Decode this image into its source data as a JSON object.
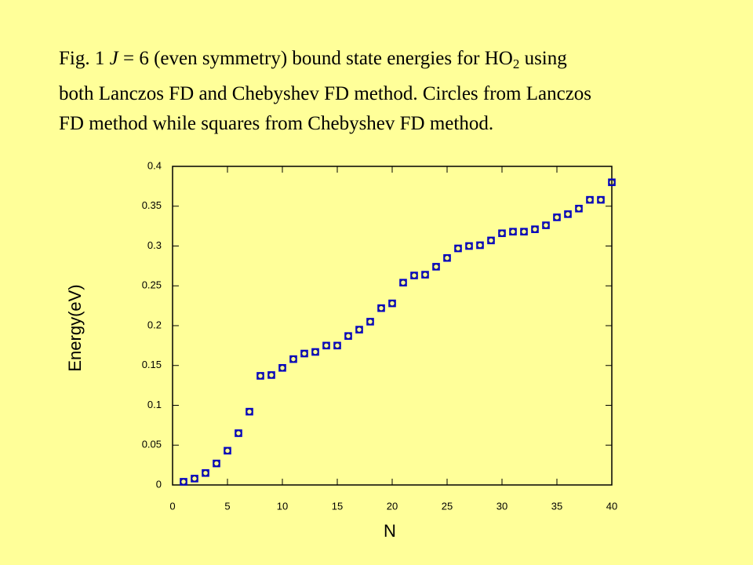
{
  "chart_data": {
    "type": "scatter",
    "title_lines": [
      [
        "Fig. 1 ",
        "J",
        " = 6 (even symmetry) bound state energies for HO",
        "2",
        " using"
      ],
      [
        "both Lanczos FD and Chebyshev FD method. Circles from Lanczos"
      ],
      [
        "FD method while squares from Chebyshev FD method."
      ]
    ],
    "x_label": "N",
    "y_label": "Energy(eV)",
    "xlim": [
      0,
      40
    ],
    "ylim": [
      0,
      0.4
    ],
    "xticks": [
      0,
      5,
      10,
      15,
      20,
      25,
      30,
      35,
      40
    ],
    "yticks": [
      0,
      0.05,
      0.1,
      0.15,
      0.2,
      0.25,
      0.3,
      0.35,
      0.4
    ],
    "x": [
      1,
      2,
      3,
      4,
      5,
      6,
      7,
      8,
      9,
      10,
      11,
      12,
      13,
      14,
      15,
      16,
      17,
      18,
      19,
      20,
      21,
      22,
      23,
      24,
      25,
      26,
      27,
      28,
      29,
      30,
      31,
      32,
      33,
      34,
      35,
      36,
      37,
      38,
      39,
      40
    ],
    "series": [
      {
        "marker": "circle",
        "color": "#1c1c7a",
        "values": [
          0.004,
          0.008,
          0.015,
          0.027,
          0.043,
          0.065,
          0.092,
          0.137,
          0.138,
          0.147,
          0.158,
          0.165,
          0.167,
          0.175,
          0.175,
          0.187,
          0.195,
          0.205,
          0.222,
          0.228,
          0.254,
          0.263,
          0.264,
          0.274,
          0.285,
          0.297,
          0.3,
          0.301,
          0.307,
          0.316,
          0.318,
          0.318,
          0.321,
          0.326,
          0.336,
          0.34,
          0.347,
          0.358,
          0.358,
          0.38
        ]
      },
      {
        "marker": "square",
        "color": "#0000cc",
        "values": [
          0.004,
          0.008,
          0.015,
          0.027,
          0.043,
          0.065,
          0.092,
          0.137,
          0.138,
          0.147,
          0.158,
          0.165,
          0.167,
          0.175,
          0.175,
          0.187,
          0.195,
          0.205,
          0.222,
          0.228,
          0.254,
          0.263,
          0.264,
          0.274,
          0.285,
          0.297,
          0.3,
          0.301,
          0.307,
          0.316,
          0.318,
          0.318,
          0.321,
          0.326,
          0.336,
          0.34,
          0.347,
          0.358,
          0.358,
          0.38
        ]
      }
    ]
  }
}
